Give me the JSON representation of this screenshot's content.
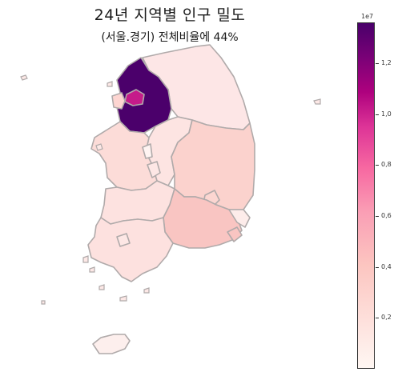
{
  "title": "24년 지역별 인구 밀도",
  "subtitle": "(서울.경기) 전체비율에 44%",
  "colorbar": {
    "exponent_label": "1e7",
    "max_value": 1.36,
    "ticks": [
      "0,2",
      "0,4",
      "0,6",
      "0,8",
      "1,0",
      "1,2"
    ],
    "tick_values": [
      0.2,
      0.4,
      0.6,
      0.8,
      1.0,
      1.2
    ]
  },
  "colors": {
    "boundary": "#b0aaaa",
    "scale": [
      "#fff7f3",
      "#fde0dd",
      "#fcc5c0",
      "#fa9fb5",
      "#f768a1",
      "#dd3497",
      "#ae017e",
      "#7a0177",
      "#49006a"
    ]
  },
  "regions": [
    {
      "name": "gyeonggi",
      "level": 1.36,
      "color": "#4b006b"
    },
    {
      "name": "seoul",
      "level": 0.94,
      "color": "#c51b8a"
    },
    {
      "name": "incheon",
      "level": 0.3,
      "color": "#fdd5d1"
    },
    {
      "name": "gangwon",
      "level": 0.15,
      "color": "#fde6e6"
    },
    {
      "name": "chungbuk",
      "level": 0.16,
      "color": "#fde4e2"
    },
    {
      "name": "chungnam",
      "level": 0.21,
      "color": "#fcdcd8"
    },
    {
      "name": "sejong",
      "level": 0.04,
      "color": "#fff4f2"
    },
    {
      "name": "daejeon",
      "level": 0.14,
      "color": "#fde7e5"
    },
    {
      "name": "jeonbuk",
      "level": 0.17,
      "color": "#fde2e0"
    },
    {
      "name": "jeonnam",
      "level": 0.18,
      "color": "#fde1df"
    },
    {
      "name": "gwangju",
      "level": 0.14,
      "color": "#fde7e5"
    },
    {
      "name": "gyeongbuk",
      "level": 0.25,
      "color": "#fbd2cd"
    },
    {
      "name": "daegu",
      "level": 0.23,
      "color": "#fcd6d1"
    },
    {
      "name": "gyeongnam",
      "level": 0.32,
      "color": "#f9c5c2"
    },
    {
      "name": "ulsan",
      "level": 0.11,
      "color": "#fdecea"
    },
    {
      "name": "busan",
      "level": 0.32,
      "color": "#f9c5c2"
    },
    {
      "name": "jeju",
      "level": 0.07,
      "color": "#fdefed"
    }
  ]
}
